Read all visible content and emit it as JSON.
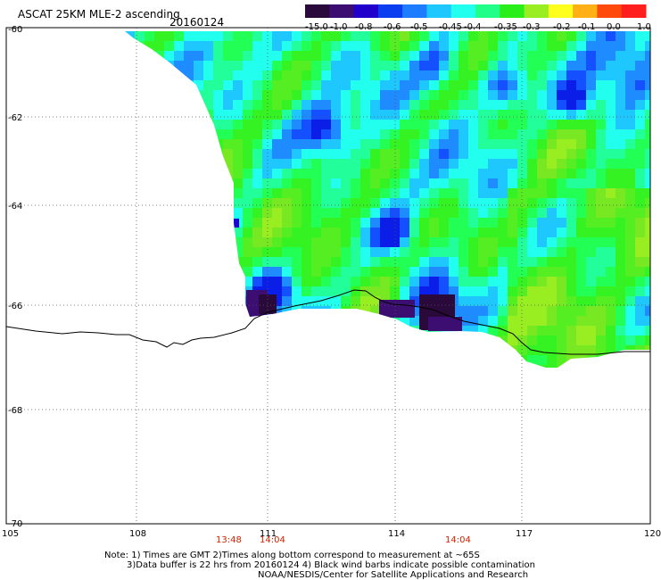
{
  "header": {
    "title": "ASCAT 25KM MLE-2 ascending",
    "date": "20160124"
  },
  "colorbar": {
    "labels": [
      "-15.0",
      "-1.0",
      "-0.8",
      "-0.6",
      "-0.5",
      "-0.45",
      "-0.4",
      "-0.35",
      "-0.3",
      "-0.2",
      "-0.1",
      "0.0",
      "1.0"
    ],
    "colors": [
      "#2a0a3a",
      "#3c0e72",
      "#2200cc",
      "#0a3cf0",
      "#1e7cff",
      "#1ec8ff",
      "#22ffee",
      "#22ff88",
      "#2aee1a",
      "#99ee22",
      "#ffff1e",
      "#ffb014",
      "#ff4a0c",
      "#ff1e1e"
    ]
  },
  "axes": {
    "y_labels": [
      "-60",
      "-62",
      "-64",
      "-66",
      "-68",
      "-70"
    ],
    "x_labels": [
      "105",
      "108",
      "111",
      "114",
      "117",
      "120"
    ]
  },
  "pass_times": [
    "13:48",
    "14:04",
    "14:04"
  ],
  "notes": {
    "line1": "Note: 1) Times are GMT 2)Times along bottom correspond to measurement at ~65S",
    "line2": "3)Data buffer is 22 hrs from 20160124 4) Black wind barbs indicate possible contamination",
    "line3": "NOAA/NESDIS/Center for Satellite Applications and Research"
  },
  "colors": {
    "land_line": "#000000",
    "grid": "#333333",
    "time_label": "#cc2200"
  }
}
